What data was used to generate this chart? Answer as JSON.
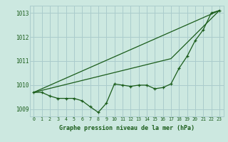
{
  "bg_color": "#cce8e0",
  "grid_color": "#aacccc",
  "line_color": "#1a5c1a",
  "text_color": "#1a5c1a",
  "xlabel": "Graphe pression niveau de la mer (hPa)",
  "xlim": [
    -0.5,
    23.5
  ],
  "ylim": [
    1008.7,
    1013.3
  ],
  "yticks": [
    1009,
    1010,
    1011,
    1012,
    1013
  ],
  "xticks": [
    0,
    1,
    2,
    3,
    4,
    5,
    6,
    7,
    8,
    9,
    10,
    11,
    12,
    13,
    14,
    15,
    16,
    17,
    18,
    19,
    20,
    21,
    22,
    23
  ],
  "line1_x": [
    0,
    1,
    2,
    3,
    4,
    5,
    6,
    7,
    8,
    9,
    10,
    11,
    12,
    13,
    14,
    15,
    16,
    17,
    18,
    19,
    20,
    21,
    22,
    23
  ],
  "line1_y": [
    1009.7,
    1009.7,
    1009.55,
    1009.45,
    1009.45,
    1009.45,
    1009.35,
    1009.1,
    1008.87,
    1009.25,
    1010.05,
    1010.0,
    1009.95,
    1010.0,
    1010.0,
    1009.85,
    1009.9,
    1010.05,
    1010.7,
    1011.2,
    1011.85,
    1012.3,
    1013.0,
    1013.1
  ],
  "line2_x": [
    0,
    23
  ],
  "line2_y": [
    1009.7,
    1013.1
  ],
  "line3_x": [
    0,
    23
  ],
  "line3_y": [
    1009.7,
    1013.1
  ],
  "line4_x": [
    0,
    17,
    23
  ],
  "line4_y": [
    1009.7,
    1011.1,
    1013.1
  ]
}
